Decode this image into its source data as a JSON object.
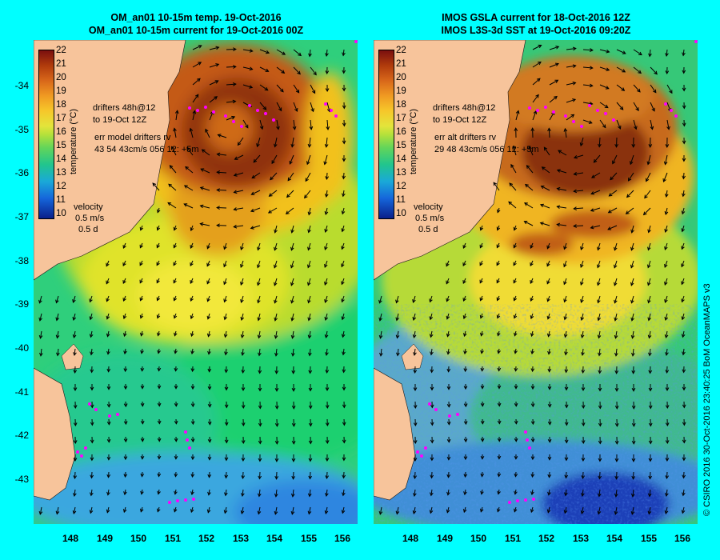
{
  "left_panel": {
    "title_line1": "OM_an01 10-15m temp. 19-Oct-2016",
    "title_line2": "OM_an01 10-15m current for 19-Oct-2016 00Z",
    "drifters_line1": "drifters 48h@12",
    "drifters_line2": "to 19-Oct 12Z",
    "err_line1": "err model drifters rv",
    "err_line2": "43 54 43cm/s 056 12: +5m"
  },
  "right_panel": {
    "title_line1": "IMOS GSLA current for 18-Oct-2016 12Z",
    "title_line2": "IMOS L3S-3d SST at 19-Oct-2016 09:20Z",
    "drifters_line1": "drifters 48h@12",
    "drifters_line2": "to 19-Oct 12Z",
    "err_line1": "err alt drifters rv",
    "err_line2": "29 48 43cm/s 056 12: +5m"
  },
  "colorbar": {
    "labels": [
      "22",
      "21",
      "20",
      "19",
      "18",
      "17",
      "16",
      "15",
      "14",
      "13",
      "12",
      "11",
      "10"
    ],
    "title": "temperature (°C)"
  },
  "velocity_legend": {
    "label": "velocity",
    "speed": "0.5 m/s",
    "duration": "0.5 d"
  },
  "axes": {
    "lat_ticks": [
      "-34",
      "-35",
      "-36",
      "-37",
      "-38",
      "-39",
      "-40",
      "-41",
      "-42",
      "-43"
    ],
    "lon_ticks": [
      "148",
      "149",
      "150",
      "151",
      "152",
      "153",
      "154",
      "155",
      "156"
    ]
  },
  "copyright": "© CSIRO 2016  30-Oct-2016 23:40:25 BoM OceanMAPS v3",
  "colors": {
    "background": "#00ffff",
    "land": "#f7c49b",
    "warm_core": "#a0410f",
    "drifter": "#ff00ff"
  }
}
